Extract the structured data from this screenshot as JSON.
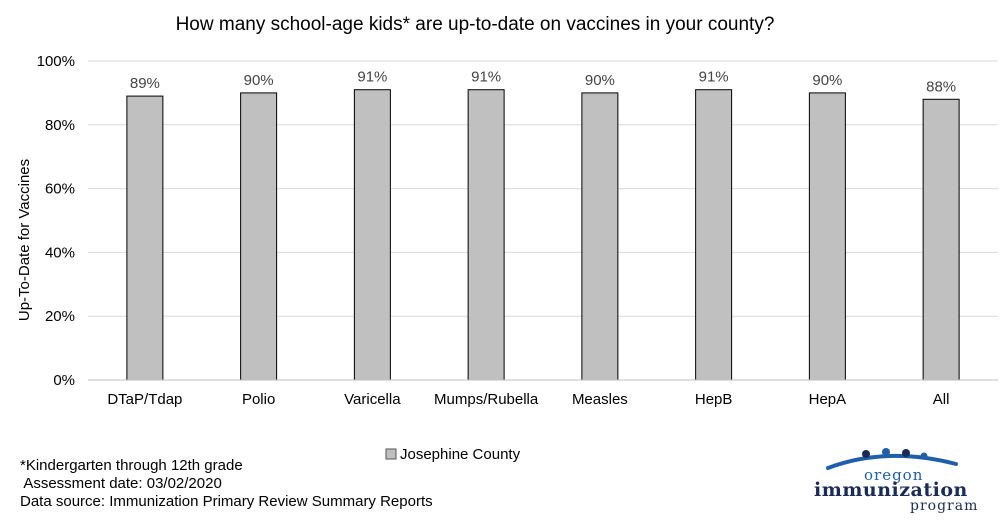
{
  "chart_data": {
    "type": "bar",
    "title": "How many school-age kids* are up-to-date on vaccines in your county?",
    "ylabel": "Up-To-Date for Vaccines",
    "xlabel": "",
    "ylim": [
      0,
      100
    ],
    "yticks": [
      "0%",
      "20%",
      "40%",
      "60%",
      "80%",
      "100%"
    ],
    "ytick_values": [
      0,
      20,
      40,
      60,
      80,
      100
    ],
    "grid": true,
    "legend_position": "bottom",
    "categories": [
      "DTaP/Tdap",
      "Polio",
      "Varicella",
      "Mumps/Rubella",
      "Measles",
      "HepB",
      "HepA",
      "All"
    ],
    "series": [
      {
        "name": "Josephine County",
        "color": "#c0c0c0",
        "values": [
          89,
          90,
          91,
          91,
          90,
          91,
          90,
          88
        ],
        "labels": [
          "89%",
          "90%",
          "91%",
          "91%",
          "90%",
          "91%",
          "90%",
          "88%"
        ]
      }
    ]
  },
  "footnotes": {
    "grade": "*Kindergarten through 12th grade",
    "assessment": " Assessment date: 03/02/2020",
    "source": "Data source: Immunization Primary Review Summary Reports"
  },
  "logo": {
    "line1": "oregon",
    "line2": "immunization",
    "line3": "program",
    "colors": [
      "#1f5ea8",
      "#1a2b55"
    ]
  }
}
